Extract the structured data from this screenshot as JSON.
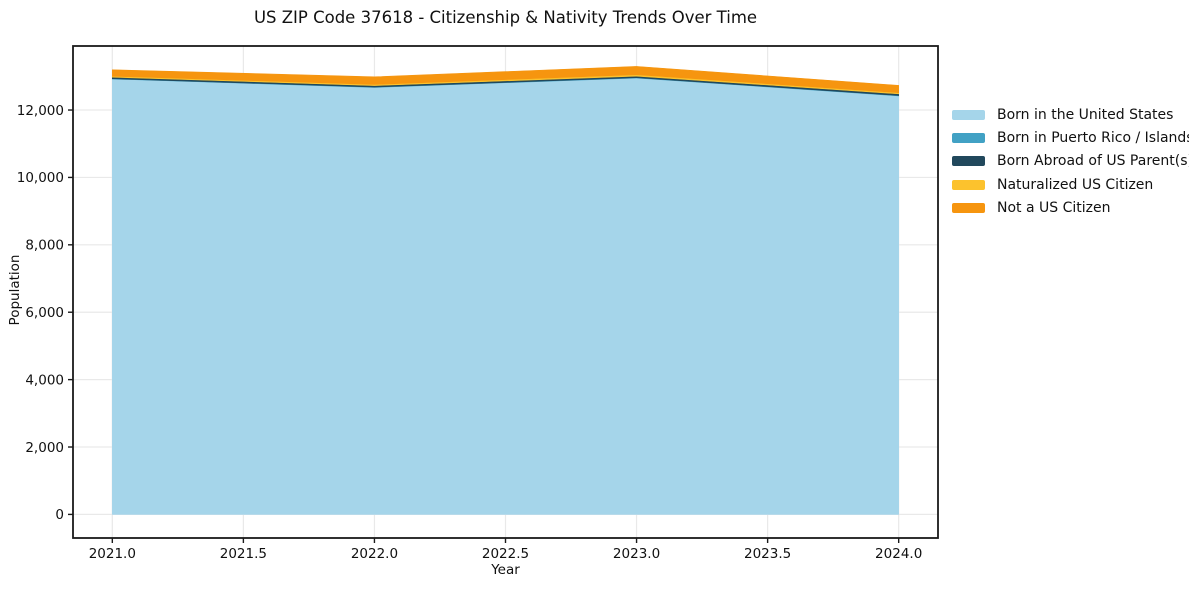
{
  "chart_data": {
    "type": "area",
    "stacked": true,
    "title": "US ZIP Code 37618 - Citizenship & Nativity Trends Over Time",
    "xlabel": "Year",
    "ylabel": "Population",
    "x": [
      2021,
      2022,
      2023,
      2024
    ],
    "series": [
      {
        "name": "Born in the United States",
        "color": "#a5d5ea",
        "values": [
          12920,
          12670,
          12950,
          12420
        ]
      },
      {
        "name": "Born in Puerto Rico / Islands",
        "color": "#41a1c4",
        "values": [
          10,
          10,
          10,
          10
        ]
      },
      {
        "name": "Born Abroad of US Parent(s)",
        "color": "#21485c",
        "values": [
          45,
          45,
          45,
          50
        ]
      },
      {
        "name": "Naturalized US Citizen",
        "color": "#fcc22d",
        "values": [
          30,
          35,
          45,
          35
        ]
      },
      {
        "name": "Not a US Citizen",
        "color": "#f6950f",
        "values": [
          190,
          225,
          245,
          215
        ]
      }
    ],
    "totals": [
      13195,
      12985,
      13295,
      12730
    ],
    "x_ticks": {
      "values": [
        2021.0,
        2021.5,
        2022.0,
        2022.5,
        2023.0,
        2023.5,
        2024.0
      ],
      "labels": [
        "2021.0",
        "2021.5",
        "2022.0",
        "2022.5",
        "2023.0",
        "2023.5",
        "2024.0"
      ]
    },
    "y_ticks": {
      "values": [
        0,
        2000,
        4000,
        6000,
        8000,
        10000,
        12000
      ],
      "labels": [
        "0",
        "2,000",
        "4,000",
        "6,000",
        "8,000",
        "10,000",
        "12,000"
      ]
    },
    "xlim": [
      2020.85,
      2024.15
    ],
    "ylim": [
      -700,
      13900
    ],
    "grid": true,
    "legend_position": "right-outside"
  }
}
